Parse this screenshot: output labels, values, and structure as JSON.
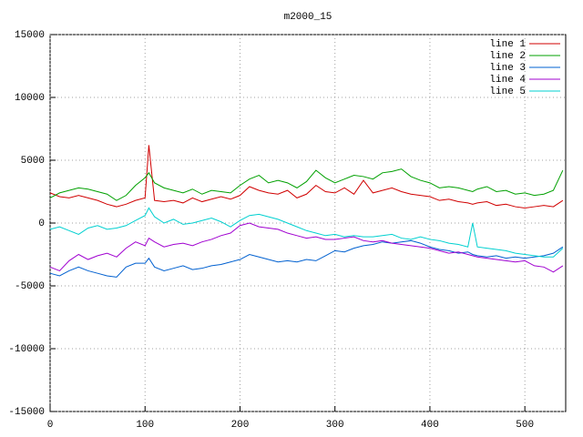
{
  "chart_data": {
    "type": "line",
    "title": "m2000_15",
    "x": [
      0,
      10,
      20,
      30,
      40,
      50,
      60,
      70,
      80,
      90,
      100,
      104,
      110,
      120,
      130,
      140,
      150,
      160,
      170,
      180,
      190,
      200,
      210,
      220,
      230,
      240,
      250,
      260,
      270,
      280,
      290,
      300,
      310,
      320,
      330,
      340,
      350,
      360,
      370,
      380,
      390,
      400,
      410,
      420,
      430,
      440,
      445,
      450,
      460,
      470,
      480,
      490,
      500,
      510,
      520,
      530,
      540
    ],
    "series": [
      {
        "name": "line 1",
        "color": "#d00000",
        "values": [
          2400,
          2100,
          2000,
          2200,
          2000,
          1800,
          1500,
          1300,
          1500,
          1800,
          2000,
          6200,
          1800,
          1700,
          1800,
          1600,
          2000,
          1700,
          1900,
          2100,
          1900,
          2200,
          2900,
          2600,
          2400,
          2300,
          2600,
          2000,
          2300,
          3000,
          2500,
          2400,
          2800,
          2300,
          3400,
          2400,
          2600,
          2800,
          2500,
          2300,
          2200,
          2100,
          1800,
          1900,
          1700,
          1600,
          1500,
          1600,
          1700,
          1400,
          1500,
          1300,
          1200,
          1300,
          1400,
          1300,
          1800
        ]
      },
      {
        "name": "line 2",
        "color": "#00a000",
        "values": [
          2000,
          2400,
          2600,
          2800,
          2700,
          2500,
          2300,
          1800,
          2200,
          3000,
          3600,
          4000,
          3200,
          2800,
          2600,
          2400,
          2700,
          2300,
          2600,
          2500,
          2400,
          3000,
          3500,
          3800,
          3200,
          3400,
          3200,
          2800,
          3300,
          4200,
          3600,
          3200,
          3500,
          3800,
          3700,
          3500,
          4000,
          4100,
          4300,
          3700,
          3400,
          3200,
          2800,
          2900,
          2800,
          2600,
          2500,
          2700,
          2900,
          2500,
          2600,
          2300,
          2400,
          2200,
          2300,
          2600,
          4200
        ]
      },
      {
        "name": "line 3",
        "color": "#0060d0",
        "values": [
          -4000,
          -4200,
          -3800,
          -3500,
          -3800,
          -4000,
          -4200,
          -4300,
          -3500,
          -3200,
          -3200,
          -2800,
          -3500,
          -3800,
          -3600,
          -3400,
          -3700,
          -3600,
          -3400,
          -3300,
          -3100,
          -2900,
          -2500,
          -2700,
          -2900,
          -3100,
          -3000,
          -3100,
          -2900,
          -3000,
          -2600,
          -2200,
          -2300,
          -2000,
          -1800,
          -1700,
          -1500,
          -1600,
          -1500,
          -1400,
          -1600,
          -1900,
          -2100,
          -2200,
          -2400,
          -2300,
          -2500,
          -2600,
          -2700,
          -2600,
          -2800,
          -2700,
          -2800,
          -2700,
          -2600,
          -2400,
          -1900
        ]
      },
      {
        "name": "line 4",
        "color": "#a000d0",
        "values": [
          -3500,
          -3800,
          -3000,
          -2500,
          -2900,
          -2600,
          -2400,
          -2700,
          -2000,
          -1500,
          -1800,
          -1200,
          -1500,
          -1900,
          -1700,
          -1600,
          -1800,
          -1500,
          -1300,
          -1000,
          -800,
          -200,
          0,
          -300,
          -400,
          -500,
          -800,
          -1000,
          -1200,
          -1100,
          -1300,
          -1300,
          -1200,
          -1100,
          -1400,
          -1500,
          -1400,
          -1600,
          -1700,
          -1800,
          -1900,
          -2000,
          -2200,
          -2400,
          -2300,
          -2500,
          -2600,
          -2700,
          -2800,
          -2900,
          -3000,
          -3100,
          -3000,
          -3400,
          -3500,
          -3900,
          -3400
        ]
      },
      {
        "name": "line 5",
        "color": "#00d0d0",
        "values": [
          -500,
          -300,
          -600,
          -900,
          -400,
          -200,
          -500,
          -400,
          -200,
          200,
          600,
          1200,
          500,
          0,
          300,
          -100,
          0,
          200,
          400,
          100,
          -300,
          200,
          600,
          700,
          500,
          300,
          0,
          -300,
          -600,
          -800,
          -1000,
          -900,
          -1100,
          -1000,
          -1100,
          -1100,
          -1000,
          -900,
          -1200,
          -1300,
          -1100,
          -1300,
          -1400,
          -1600,
          -1700,
          -1900,
          0,
          -1900,
          -2000,
          -2100,
          -2200,
          -2400,
          -2500,
          -2600,
          -2700,
          -2700,
          -2000
        ]
      }
    ],
    "xlim": [
      0,
      543
    ],
    "ylim": [
      -15000,
      15000
    ],
    "xticks": [
      0,
      100,
      200,
      300,
      400,
      500
    ],
    "yticks": [
      -15000,
      -10000,
      -5000,
      0,
      5000,
      10000,
      15000
    ],
    "grid": true,
    "legend": "top-right"
  }
}
